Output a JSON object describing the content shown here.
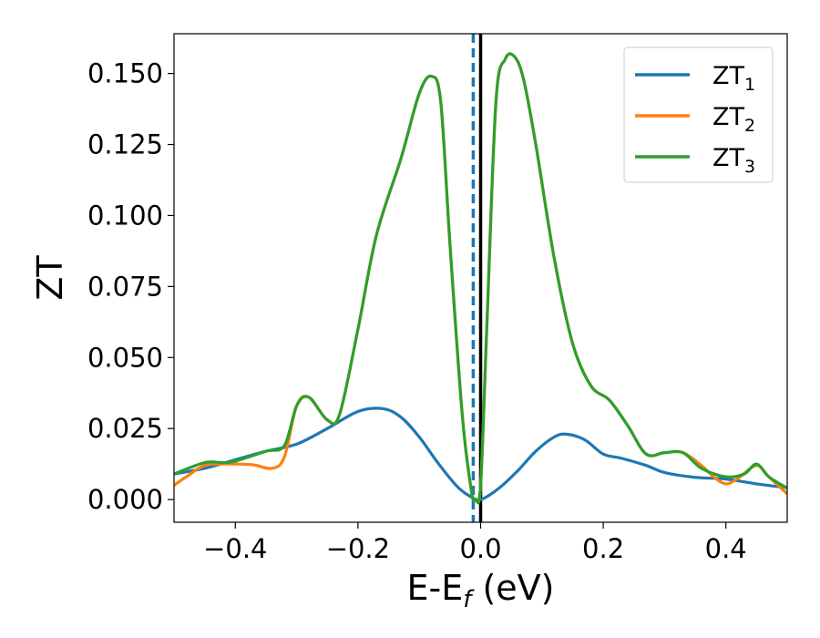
{
  "chart_data": {
    "type": "line",
    "title": "",
    "xlabel": "E-E",
    "xlabel_sub": "f",
    "xlabel_unit": " (eV)",
    "ylabel": "ZT",
    "xlim": [
      -0.5,
      0.5
    ],
    "ylim": [
      -0.008,
      0.164
    ],
    "xticks": [
      -0.4,
      -0.2,
      0.0,
      0.2,
      0.4
    ],
    "xtick_labels": [
      "−0.4",
      "−0.2",
      "0.0",
      "0.2",
      "0.4"
    ],
    "yticks": [
      0.0,
      0.025,
      0.05,
      0.075,
      0.1,
      0.125,
      0.15
    ],
    "ytick_labels": [
      "0.000",
      "0.025",
      "0.050",
      "0.075",
      "0.100",
      "0.125",
      "0.150"
    ],
    "grid": false,
    "legend_position": "top-right",
    "vlines": [
      {
        "x": -0.012,
        "style": "dashed",
        "color": "#1f77b4"
      },
      {
        "x": 0.0,
        "style": "solid",
        "color": "#000000"
      }
    ],
    "series": [
      {
        "name": "ZT",
        "name_sub": "1",
        "color": "#1f77b4",
        "x": [
          -0.5,
          -0.45,
          -0.4,
          -0.35,
          -0.3,
          -0.25,
          -0.2,
          -0.16,
          -0.13,
          -0.1,
          -0.07,
          -0.04,
          -0.02,
          0.0,
          0.03,
          0.06,
          0.09,
          0.12,
          0.14,
          0.17,
          0.2,
          0.23,
          0.27,
          0.3,
          0.35,
          0.4,
          0.45,
          0.5
        ],
        "values": [
          0.009,
          0.011,
          0.014,
          0.017,
          0.0195,
          0.025,
          0.031,
          0.032,
          0.029,
          0.022,
          0.013,
          0.005,
          0.0015,
          0.0,
          0.004,
          0.01,
          0.017,
          0.022,
          0.023,
          0.021,
          0.016,
          0.0145,
          0.012,
          0.0095,
          0.0078,
          0.0072,
          0.0055,
          0.0042
        ]
      },
      {
        "name": "ZT",
        "name_sub": "2",
        "color": "#ff7f0e",
        "x": [
          -0.5,
          -0.48,
          -0.45,
          -0.42,
          -0.4,
          -0.37,
          -0.34,
          -0.32,
          -0.3,
          -0.28,
          -0.25,
          -0.23,
          -0.2,
          -0.17,
          -0.13,
          -0.1,
          -0.08,
          -0.065,
          -0.05,
          -0.03,
          -0.015,
          -0.008,
          0.0,
          0.01,
          0.025,
          0.04,
          0.055,
          0.07,
          0.09,
          0.12,
          0.15,
          0.18,
          0.21,
          0.24,
          0.27,
          0.3,
          0.33,
          0.36,
          0.38,
          0.4,
          0.42,
          0.45,
          0.47,
          0.5
        ],
        "values": [
          0.005,
          0.008,
          0.012,
          0.0125,
          0.0125,
          0.0122,
          0.011,
          0.015,
          0.033,
          0.036,
          0.028,
          0.03,
          0.06,
          0.093,
          0.12,
          0.143,
          0.149,
          0.14,
          0.09,
          0.03,
          0.003,
          0.0,
          0.005,
          0.06,
          0.14,
          0.155,
          0.156,
          0.148,
          0.125,
          0.085,
          0.055,
          0.04,
          0.035,
          0.026,
          0.016,
          0.0165,
          0.0165,
          0.012,
          0.008,
          0.0055,
          0.0075,
          0.012,
          0.008,
          0.002
        ]
      },
      {
        "name": "ZT",
        "name_sub": "3",
        "color": "#2ca02c",
        "x": [
          -0.5,
          -0.45,
          -0.42,
          -0.4,
          -0.35,
          -0.32,
          -0.3,
          -0.28,
          -0.25,
          -0.23,
          -0.2,
          -0.17,
          -0.13,
          -0.1,
          -0.08,
          -0.065,
          -0.05,
          -0.03,
          -0.015,
          -0.008,
          0.0,
          0.01,
          0.025,
          0.04,
          0.055,
          0.07,
          0.09,
          0.12,
          0.15,
          0.18,
          0.21,
          0.24,
          0.27,
          0.3,
          0.33,
          0.36,
          0.4,
          0.43,
          0.45,
          0.47,
          0.5
        ],
        "values": [
          0.009,
          0.013,
          0.013,
          0.0135,
          0.017,
          0.019,
          0.033,
          0.036,
          0.028,
          0.03,
          0.06,
          0.093,
          0.12,
          0.143,
          0.149,
          0.14,
          0.09,
          0.03,
          0.003,
          0.0,
          0.005,
          0.06,
          0.14,
          0.155,
          0.156,
          0.148,
          0.125,
          0.085,
          0.055,
          0.04,
          0.035,
          0.026,
          0.016,
          0.0165,
          0.0165,
          0.011,
          0.008,
          0.009,
          0.0125,
          0.008,
          0.004
        ]
      }
    ]
  }
}
